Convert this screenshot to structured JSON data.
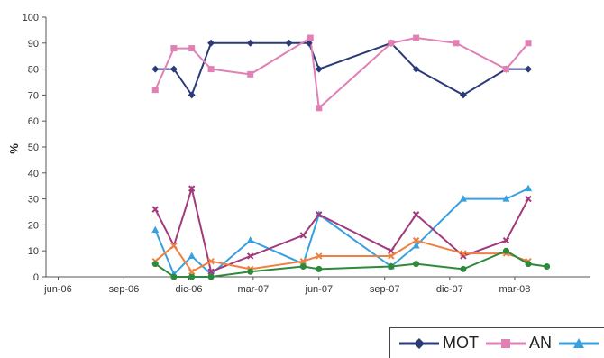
{
  "chart_data": {
    "type": "line",
    "title": "",
    "xlabel": "",
    "ylabel": "%",
    "ylim": [
      0,
      100
    ],
    "yticks": [
      0,
      10,
      20,
      30,
      40,
      50,
      60,
      70,
      80,
      90,
      100
    ],
    "x_ticks": [
      {
        "label": "jun-06",
        "date": "2006-06-01"
      },
      {
        "label": "sep-06",
        "date": "2006-09-01"
      },
      {
        "label": "dic-06",
        "date": "2006-12-01"
      },
      {
        "label": "mar-07",
        "date": "2007-03-01"
      },
      {
        "label": "jun-07",
        "date": "2007-06-01"
      },
      {
        "label": "sep-07",
        "date": "2007-09-01"
      },
      {
        "label": "dic-07",
        "date": "2007-12-01"
      },
      {
        "label": "mar-08",
        "date": "2008-03-01"
      }
    ],
    "xlim": [
      "2006-05-15",
      "2008-06-15"
    ],
    "legend_position": "bottom-right",
    "series": [
      {
        "name": "MOT",
        "color": "#2b3a78",
        "marker": "diamond",
        "points": [
          {
            "x": "2006-10-15",
            "y": 80
          },
          {
            "x": "2006-11-10",
            "y": 80
          },
          {
            "x": "2006-12-05",
            "y": 70
          },
          {
            "x": "2007-01-01",
            "y": 90
          },
          {
            "x": "2007-02-25",
            "y": 90
          },
          {
            "x": "2007-04-20",
            "y": 90
          },
          {
            "x": "2007-05-18",
            "y": 90
          },
          {
            "x": "2007-06-01",
            "y": 80
          },
          {
            "x": "2007-09-10",
            "y": 90
          },
          {
            "x": "2007-10-15",
            "y": 80
          },
          {
            "x": "2007-12-20",
            "y": 70
          },
          {
            "x": "2008-02-18",
            "y": 80
          },
          {
            "x": "2008-03-20",
            "y": 80
          }
        ]
      },
      {
        "name": "AN",
        "color": "#e080b4",
        "marker": "square",
        "points": [
          {
            "x": "2006-10-15",
            "y": 72
          },
          {
            "x": "2006-11-10",
            "y": 88
          },
          {
            "x": "2006-12-05",
            "y": 88
          },
          {
            "x": "2007-01-01",
            "y": 80
          },
          {
            "x": "2007-02-25",
            "y": 78
          },
          {
            "x": "2007-05-20",
            "y": 92
          },
          {
            "x": "2007-06-01",
            "y": 65
          },
          {
            "x": "2007-09-10",
            "y": 90
          },
          {
            "x": "2007-10-15",
            "y": 92
          },
          {
            "x": "2007-12-10",
            "y": 90
          },
          {
            "x": "2008-02-18",
            "y": 80
          },
          {
            "x": "2008-03-20",
            "y": 90
          }
        ]
      },
      {
        "name": "",
        "color": "#39a0e0",
        "marker": "triangle",
        "points": [
          {
            "x": "2006-10-15",
            "y": 18
          },
          {
            "x": "2006-11-10",
            "y": 1
          },
          {
            "x": "2006-12-05",
            "y": 8
          },
          {
            "x": "2007-01-01",
            "y": 1
          },
          {
            "x": "2007-02-25",
            "y": 14
          },
          {
            "x": "2007-05-10",
            "y": 5
          },
          {
            "x": "2007-06-01",
            "y": 24
          },
          {
            "x": "2007-09-10",
            "y": 4
          },
          {
            "x": "2007-10-15",
            "y": 12
          },
          {
            "x": "2007-12-20",
            "y": 30
          },
          {
            "x": "2008-02-18",
            "y": 30
          },
          {
            "x": "2008-03-20",
            "y": 34
          }
        ]
      },
      {
        "name": "",
        "color": "#a03a7c",
        "marker": "x",
        "points": [
          {
            "x": "2006-10-15",
            "y": 26
          },
          {
            "x": "2006-11-10",
            "y": 12
          },
          {
            "x": "2006-12-05",
            "y": 34
          },
          {
            "x": "2007-01-01",
            "y": 2
          },
          {
            "x": "2007-02-25",
            "y": 8
          },
          {
            "x": "2007-05-10",
            "y": 16
          },
          {
            "x": "2007-06-01",
            "y": 24
          },
          {
            "x": "2007-09-10",
            "y": 10
          },
          {
            "x": "2007-10-15",
            "y": 24
          },
          {
            "x": "2007-12-20",
            "y": 8
          },
          {
            "x": "2008-02-18",
            "y": 14
          },
          {
            "x": "2008-03-20",
            "y": 30
          }
        ]
      },
      {
        "name": "",
        "color": "#f08040",
        "marker": "x",
        "points": [
          {
            "x": "2006-10-15",
            "y": 6
          },
          {
            "x": "2006-11-10",
            "y": 12
          },
          {
            "x": "2006-12-05",
            "y": 2
          },
          {
            "x": "2007-01-01",
            "y": 6
          },
          {
            "x": "2007-02-25",
            "y": 3
          },
          {
            "x": "2007-05-10",
            "y": 6
          },
          {
            "x": "2007-06-01",
            "y": 8
          },
          {
            "x": "2007-09-10",
            "y": 8
          },
          {
            "x": "2007-10-15",
            "y": 14
          },
          {
            "x": "2007-12-20",
            "y": 9
          },
          {
            "x": "2008-02-18",
            "y": 9
          },
          {
            "x": "2008-03-20",
            "y": 6
          }
        ]
      },
      {
        "name": "",
        "color": "#2e8a3a",
        "marker": "circle",
        "points": [
          {
            "x": "2006-10-15",
            "y": 5
          },
          {
            "x": "2006-11-10",
            "y": 0
          },
          {
            "x": "2006-12-05",
            "y": 0
          },
          {
            "x": "2007-01-01",
            "y": 0
          },
          {
            "x": "2007-02-25",
            "y": 2
          },
          {
            "x": "2007-05-10",
            "y": 4
          },
          {
            "x": "2007-06-01",
            "y": 3
          },
          {
            "x": "2007-09-10",
            "y": 4
          },
          {
            "x": "2007-10-15",
            "y": 5
          },
          {
            "x": "2007-12-20",
            "y": 3
          },
          {
            "x": "2008-02-18",
            "y": 10
          },
          {
            "x": "2008-03-20",
            "y": 5
          },
          {
            "x": "2008-04-15",
            "y": 4
          }
        ]
      }
    ]
  },
  "legend": {
    "items": [
      {
        "label": "MOT",
        "color": "#2b3a78",
        "marker": "diamond"
      },
      {
        "label": "AN",
        "color": "#e080b4",
        "marker": "square"
      },
      {
        "label": "",
        "color": "#39a0e0",
        "marker": "triangle"
      }
    ]
  }
}
